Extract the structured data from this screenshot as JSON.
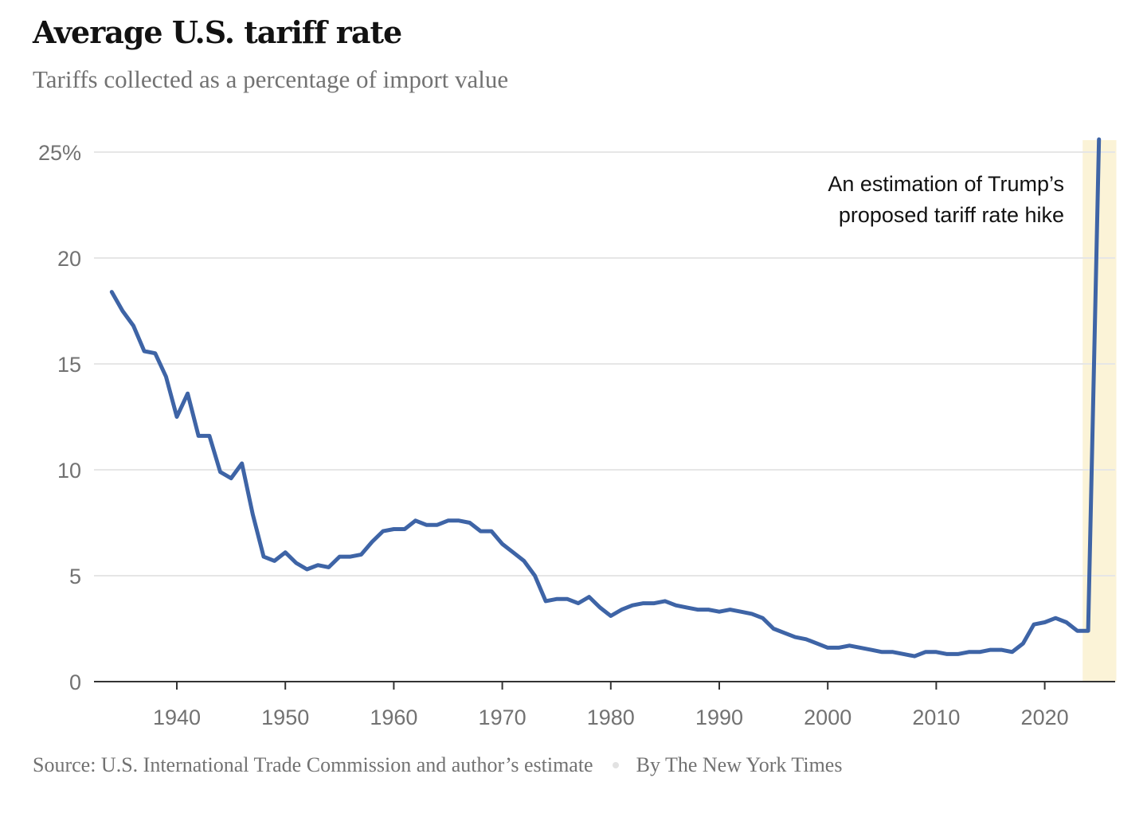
{
  "chart_data": {
    "type": "line",
    "title": "Average U.S. tariff rate",
    "subtitle": "Tariffs collected as a percentage of import value",
    "xlabel": "",
    "ylabel": "",
    "xlim": [
      1933,
      2027
    ],
    "ylim": [
      0,
      25
    ],
    "grid": true,
    "x_ticks": [
      1940,
      1950,
      1960,
      1970,
      1980,
      1990,
      2000,
      2010,
      2020
    ],
    "y_ticks": [
      {
        "value": 0,
        "label": "0"
      },
      {
        "value": 5,
        "label": "5"
      },
      {
        "value": 10,
        "label": "10"
      },
      {
        "value": 15,
        "label": "15"
      },
      {
        "value": 20,
        "label": "20"
      },
      {
        "value": 25,
        "label": "25%"
      }
    ],
    "line_color": "#3e64a6",
    "highlight": {
      "x_range": [
        2023.5,
        2026.6
      ],
      "color": "#fbf3d7"
    },
    "annotation": [
      "An estimation of Trump’s",
      "proposed tariff rate hike"
    ],
    "x": [
      1934,
      1935,
      1936,
      1937,
      1938,
      1939,
      1940,
      1941,
      1942,
      1943,
      1944,
      1945,
      1946,
      1947,
      1948,
      1949,
      1950,
      1951,
      1952,
      1953,
      1954,
      1955,
      1956,
      1957,
      1958,
      1959,
      1960,
      1961,
      1962,
      1963,
      1964,
      1965,
      1966,
      1967,
      1968,
      1969,
      1970,
      1971,
      1972,
      1973,
      1974,
      1975,
      1976,
      1977,
      1978,
      1979,
      1980,
      1981,
      1982,
      1983,
      1984,
      1985,
      1986,
      1987,
      1988,
      1989,
      1990,
      1991,
      1992,
      1993,
      1994,
      1995,
      1996,
      1997,
      1998,
      1999,
      2000,
      2001,
      2002,
      2003,
      2004,
      2005,
      2006,
      2007,
      2008,
      2009,
      2010,
      2011,
      2012,
      2013,
      2014,
      2015,
      2016,
      2017,
      2018,
      2019,
      2020,
      2021,
      2022,
      2023,
      2024,
      2025
    ],
    "values": [
      18.4,
      17.5,
      16.8,
      15.6,
      15.5,
      14.4,
      12.5,
      13.6,
      11.6,
      11.6,
      9.9,
      9.6,
      10.3,
      7.9,
      5.9,
      5.7,
      6.1,
      5.6,
      5.3,
      5.5,
      5.4,
      5.9,
      5.9,
      6.0,
      6.6,
      7.1,
      7.2,
      7.2,
      7.6,
      7.4,
      7.4,
      7.6,
      7.6,
      7.5,
      7.1,
      7.1,
      6.5,
      6.1,
      5.7,
      5.0,
      3.8,
      3.9,
      3.9,
      3.7,
      4.0,
      3.5,
      3.1,
      3.4,
      3.6,
      3.7,
      3.7,
      3.8,
      3.6,
      3.5,
      3.4,
      3.4,
      3.3,
      3.4,
      3.3,
      3.2,
      3.0,
      2.5,
      2.3,
      2.1,
      2.0,
      1.8,
      1.6,
      1.6,
      1.7,
      1.6,
      1.5,
      1.4,
      1.4,
      1.3,
      1.2,
      1.4,
      1.4,
      1.3,
      1.3,
      1.4,
      1.4,
      1.5,
      1.5,
      1.4,
      1.8,
      2.7,
      2.8,
      3.0,
      2.8,
      2.4,
      2.4,
      25.6
    ]
  },
  "footer": {
    "source": "Source: U.S. International Trade Commission and author’s estimate",
    "byline": "By The New York Times"
  }
}
